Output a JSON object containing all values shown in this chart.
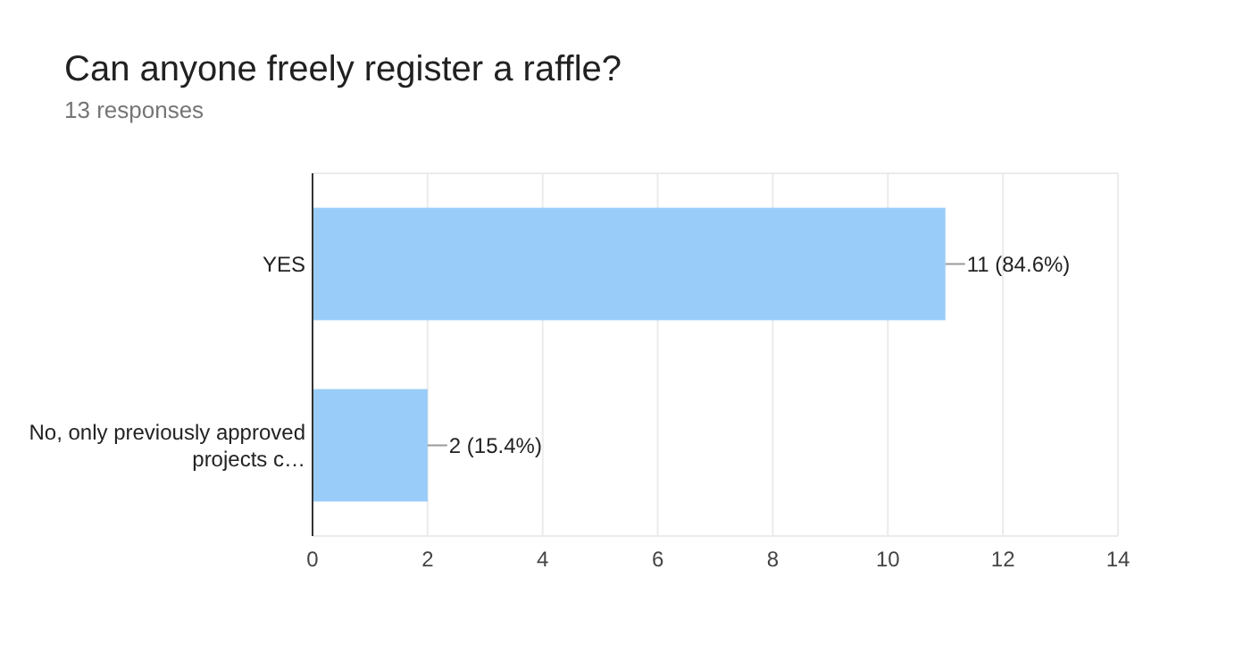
{
  "chart_data": {
    "type": "bar",
    "orientation": "horizontal",
    "title": "Can anyone freely register a raffle?",
    "subtitle": "13 responses",
    "categories": [
      "YES",
      "No, only previously approved projects c…"
    ],
    "values": [
      11,
      2
    ],
    "color": "#99ccf9",
    "value_labels": [
      "11 (84.6%)",
      "2 (15.4%)"
    ],
    "xlim": [
      0,
      14
    ],
    "xticks": [
      0,
      2,
      4,
      6,
      8,
      10,
      12,
      14
    ],
    "grid": "x"
  }
}
